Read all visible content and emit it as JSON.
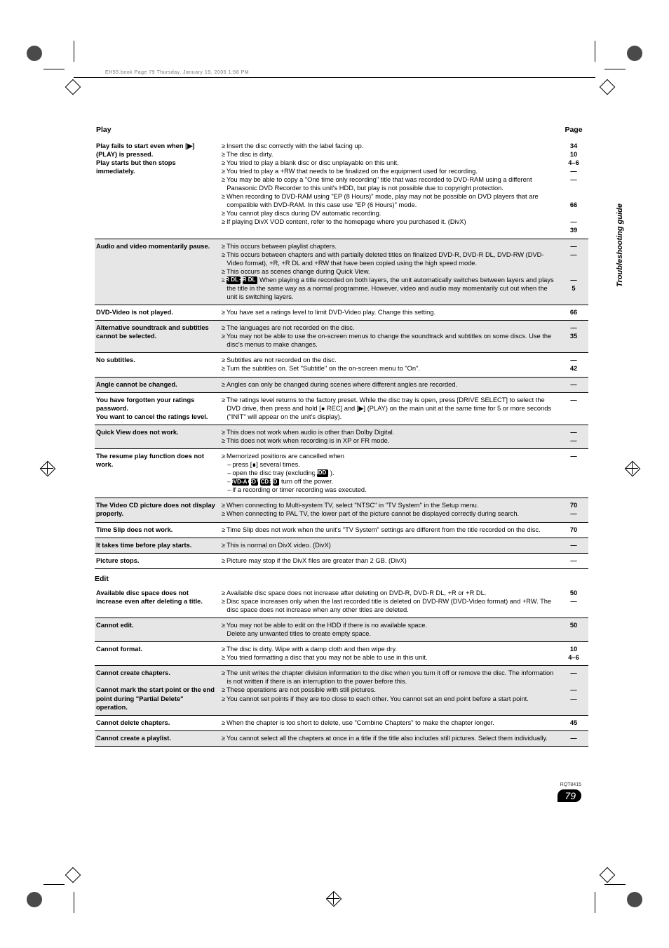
{
  "doc": {
    "header_slug": "EH55.book  Page 79  Thursday, January 19, 2006  1:58 PM",
    "side_label": "Troubleshooting guide",
    "footer_code": "RQT8415",
    "page_number": "79"
  },
  "play": {
    "section": "Play",
    "page_label": "Page",
    "rows": [
      {
        "shade": false,
        "issue": "Play fails to start even when [▶] (PLAY) is pressed.\nPlay starts but then stops immediately.",
        "body": [
          "Insert the disc correctly with the label facing up.",
          "The disc is dirty.",
          "You tried to play a blank disc or disc unplayable on this unit.",
          "You tried to play a +RW that needs to be finalized on the equipment used for recording.",
          "You may be able to copy a \"One time only recording\" title that was recorded to DVD-RAM using a different Panasonic DVD Recorder to this unit's HDD, but play is not possible due to copyright protection.",
          "When recording to DVD-RAM using \"EP (8 Hours)\" mode, play may not be possible on DVD players that are compatible with DVD-RAM. In this case use \"EP (6 Hours)\" mode.",
          "You cannot play discs during DV automatic recording.",
          "If playing DivX VOD content, refer to the homepage where you purchased it. (DivX)"
        ],
        "pages": "34\n10\n4–6\n—\n—\n\n\n66\n\n—\n39"
      },
      {
        "shade": true,
        "issue": "Audio and video momentarily pause.",
        "body": [
          "This occurs between playlist chapters.",
          "This occurs between chapters and with partially deleted titles on finalized DVD-R, DVD-R DL, DVD-RW (DVD-Video format), +R, +R DL and +RW that have been copied using the high speed mode.",
          "This occurs as scenes change during Quick View.",
          "[-R DL] [+R DL]  When playing a title recorded on both layers, the unit automatically switches between layers and plays the title in the same way as a normal programme. However, video and audio may momentarily cut out when the unit is switching layers."
        ],
        "badges": [
          [
            "-R DL",
            "+R DL"
          ]
        ],
        "pages": "—\n—\n\n\n—\n5"
      },
      {
        "shade": false,
        "issue": "DVD-Video is not played.",
        "body": [
          "You have set a ratings level to limit DVD-Video play. Change this setting."
        ],
        "pages": "66"
      },
      {
        "shade": true,
        "issue": "Alternative soundtrack and subtitles cannot be selected.",
        "body": [
          "The languages are not recorded on the disc.",
          "You may not be able to use the on-screen menus to change the soundtrack and subtitles on some discs. Use the disc's menus to make changes."
        ],
        "pages": "—\n35"
      },
      {
        "shade": false,
        "issue": "No subtitles.",
        "body": [
          "Subtitles are not recorded on the disc.",
          "Turn the subtitles on. Set \"Subtitle\" on the on-screen menu to \"On\"."
        ],
        "pages": "—\n42"
      },
      {
        "shade": true,
        "issue": "Angle cannot be changed.",
        "body": [
          "Angles can only be changed during scenes where different angles are recorded."
        ],
        "pages": "—"
      },
      {
        "shade": false,
        "issue": "You have forgotten your ratings password.\nYou want to cancel the ratings level.",
        "body": [
          "The ratings level returns to the factory preset. While the disc tray is open, press [DRIVE SELECT] to select the DVD drive, then press and hold [● REC] and [▶] (PLAY) on the main unit at the same time for 5 or more seconds (\"INIT\" will appear on the unit's display)."
        ],
        "pages": "—"
      },
      {
        "shade": true,
        "issue": "Quick View does not work.",
        "body": [
          "This does not work when audio is other than Dolby Digital.",
          "This does not work when recording is in XP or FR mode."
        ],
        "pages": "—\n—"
      },
      {
        "shade": false,
        "issue": "The resume play function does not work.",
        "body_special": "resume",
        "pages": "—"
      },
      {
        "shade": true,
        "issue": "The Video CD picture does not display properly.",
        "body": [
          "When connecting to Multi-system TV, select \"NTSC\" in \"TV System\" in the Setup menu.",
          "When connecting to PAL TV, the lower part of the picture cannot be displayed correctly during search."
        ],
        "pages": "70\n—"
      },
      {
        "shade": false,
        "issue": "Time Slip does not work.",
        "body": [
          "Time Slip does not work when the unit's \"TV System\" settings are different from the title recorded on the disc."
        ],
        "pages": "70"
      },
      {
        "shade": true,
        "issue": "It takes time before play starts.",
        "body": [
          "This is normal on DivX video. (DivX)"
        ],
        "pages": "—"
      },
      {
        "shade": false,
        "issue": "Picture stops.",
        "body": [
          "Picture may stop if the DivX files are greater than 2 GB. (DivX)"
        ],
        "pages": "—"
      }
    ],
    "resume": {
      "lead": "Memorized positions are cancelled when",
      "subs": [
        "press [∎] several times.",
        "open the disc tray (excluding [HDD] ).",
        "[DVD-A] [CD] [VCD] [SD] turn off the power.",
        "if a recording or timer recording was executed."
      ],
      "badges1": [
        "HDD"
      ],
      "badges2": [
        "DVD-A",
        "CD",
        "VCD",
        "SD"
      ]
    }
  },
  "edit": {
    "section": "Edit",
    "rows": [
      {
        "shade": false,
        "issue": "Available disc space does not increase even after deleting a title.",
        "body": [
          "Available disc space does not increase after deleting on DVD-R, DVD-R DL, +R or +R DL.",
          "Disc space increases only when the last recorded title is deleted on DVD-RW (DVD-Video format) and +RW. The disc space does not increase when any other titles are deleted."
        ],
        "pages": "50\n—"
      },
      {
        "shade": true,
        "issue": "Cannot edit.",
        "body": [
          "You may not be able to edit on the HDD if there is no available space.\nDelete any unwanted titles to create empty space."
        ],
        "pages": "50"
      },
      {
        "shade": false,
        "issue": "Cannot format.",
        "body": [
          "The disc is dirty. Wipe with a damp cloth and then wipe dry.",
          "You tried formatting a disc that you may not be able to use in this unit."
        ],
        "pages": "10\n4–6"
      },
      {
        "shade": true,
        "issue": "Cannot create chapters.\n\nCannot mark the start point or the end point during \"Partial Delete\" operation.",
        "body": [
          "The unit writes the chapter division information to the disc when you turn it off or remove the disc. The information is not written if there is an interruption to the power before this.",
          "These operations are not possible with still pictures.",
          "You cannot set points if they are too close to each other. You cannot set an end point before a start point."
        ],
        "pages": "—\n\n—\n—"
      },
      {
        "shade": false,
        "issue": "Cannot delete chapters.",
        "body": [
          "When the chapter is too short to delete, use \"Combine Chapters\" to make the chapter longer."
        ],
        "pages": "45"
      },
      {
        "shade": true,
        "issue": "Cannot create a playlist.",
        "body": [
          "You cannot select all the chapters at once in a title if the title also includes still pictures. Select them individually."
        ],
        "pages": "—"
      }
    ]
  },
  "style": {
    "text_color": "#000000",
    "shade_bg": "#e6e6e6",
    "badge_bg": "#000000",
    "badge_fg": "#ffffff",
    "page_bg": "#ffffff"
  }
}
